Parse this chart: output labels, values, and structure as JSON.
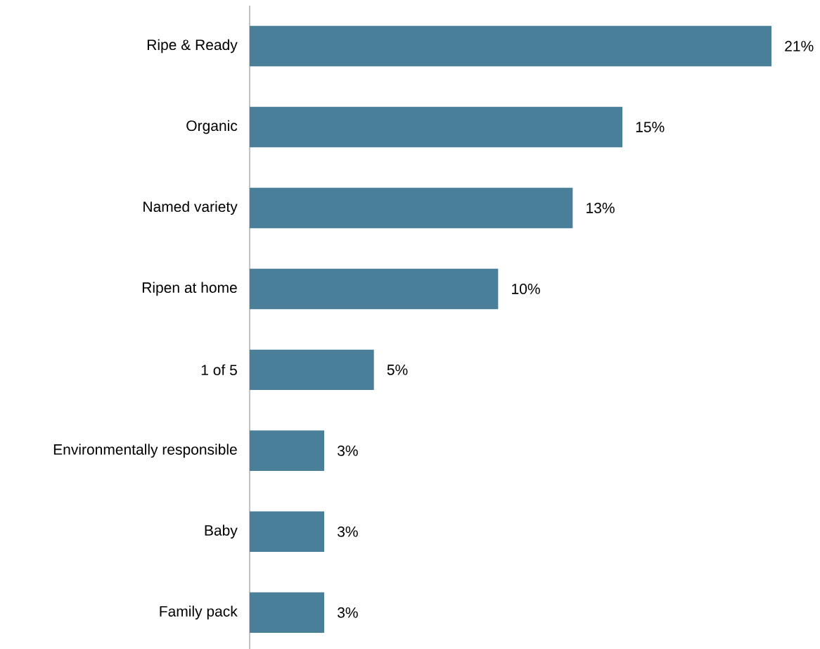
{
  "chart_data": {
    "type": "bar",
    "orientation": "horizontal",
    "categories": [
      "Ripe & Ready",
      "Organic",
      "Named variety",
      "Ripen at home",
      "1 of 5",
      "Environmentally responsible",
      "Baby",
      "Family pack"
    ],
    "values": [
      21,
      15,
      13,
      10,
      5,
      3,
      3,
      3
    ],
    "value_labels": [
      "21%",
      "15%",
      "13%",
      "10%",
      "5%",
      "3%",
      "3%",
      "3%"
    ],
    "color": "#4a7f99"
  }
}
